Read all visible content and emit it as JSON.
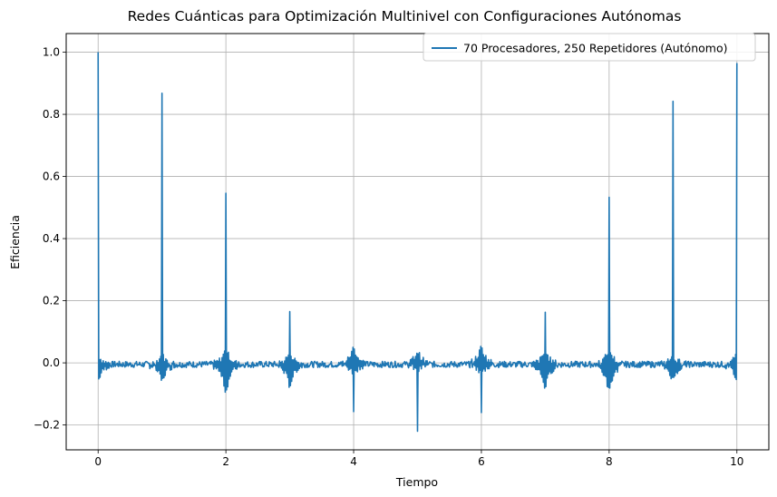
{
  "chart_data": {
    "type": "line",
    "title": "Redes Cuánticas para Optimización Multinivel con Configuraciones Autónomas",
    "xlabel": "Tiempo",
    "ylabel": "Eficiencia",
    "xlim": [
      -0.5,
      10.5
    ],
    "ylim": [
      -0.28,
      1.06
    ],
    "xticks": [
      0,
      2,
      4,
      6,
      8,
      10
    ],
    "yticks": [
      -0.2,
      0.0,
      0.2,
      0.4,
      0.6,
      0.8,
      1.0
    ],
    "ytick_labels": [
      "−0.2",
      "0.0",
      "0.2",
      "0.4",
      "0.6",
      "0.8",
      "1.0"
    ],
    "grid": true,
    "legend_position": "top-right",
    "series": [
      {
        "name": "70 Procesadores, 250 Repetidores (Autónomo)",
        "color": "#1f77b4",
        "peaks": [
          {
            "x": 0,
            "y": 1.0,
            "min": -0.055
          },
          {
            "x": 1,
            "y": 0.868,
            "min": -0.058
          },
          {
            "x": 2,
            "y": 0.546,
            "min": -0.095
          },
          {
            "x": 3,
            "y": 0.165,
            "min": -0.075
          },
          {
            "x": 4,
            "y": -0.157,
            "max": 0.058
          },
          {
            "x": 5,
            "y": -0.22,
            "max": 0.045
          },
          {
            "x": 6,
            "y": -0.16,
            "max": 0.06
          },
          {
            "x": 7,
            "y": 0.163,
            "min": -0.08
          },
          {
            "x": 8,
            "y": 0.533,
            "min": -0.095
          },
          {
            "x": 9,
            "y": 0.842,
            "min": -0.055
          },
          {
            "x": 10,
            "y": 0.965,
            "min": -0.055
          }
        ],
        "baseline": 0.0,
        "noise_amplitude": 0.01
      }
    ]
  }
}
